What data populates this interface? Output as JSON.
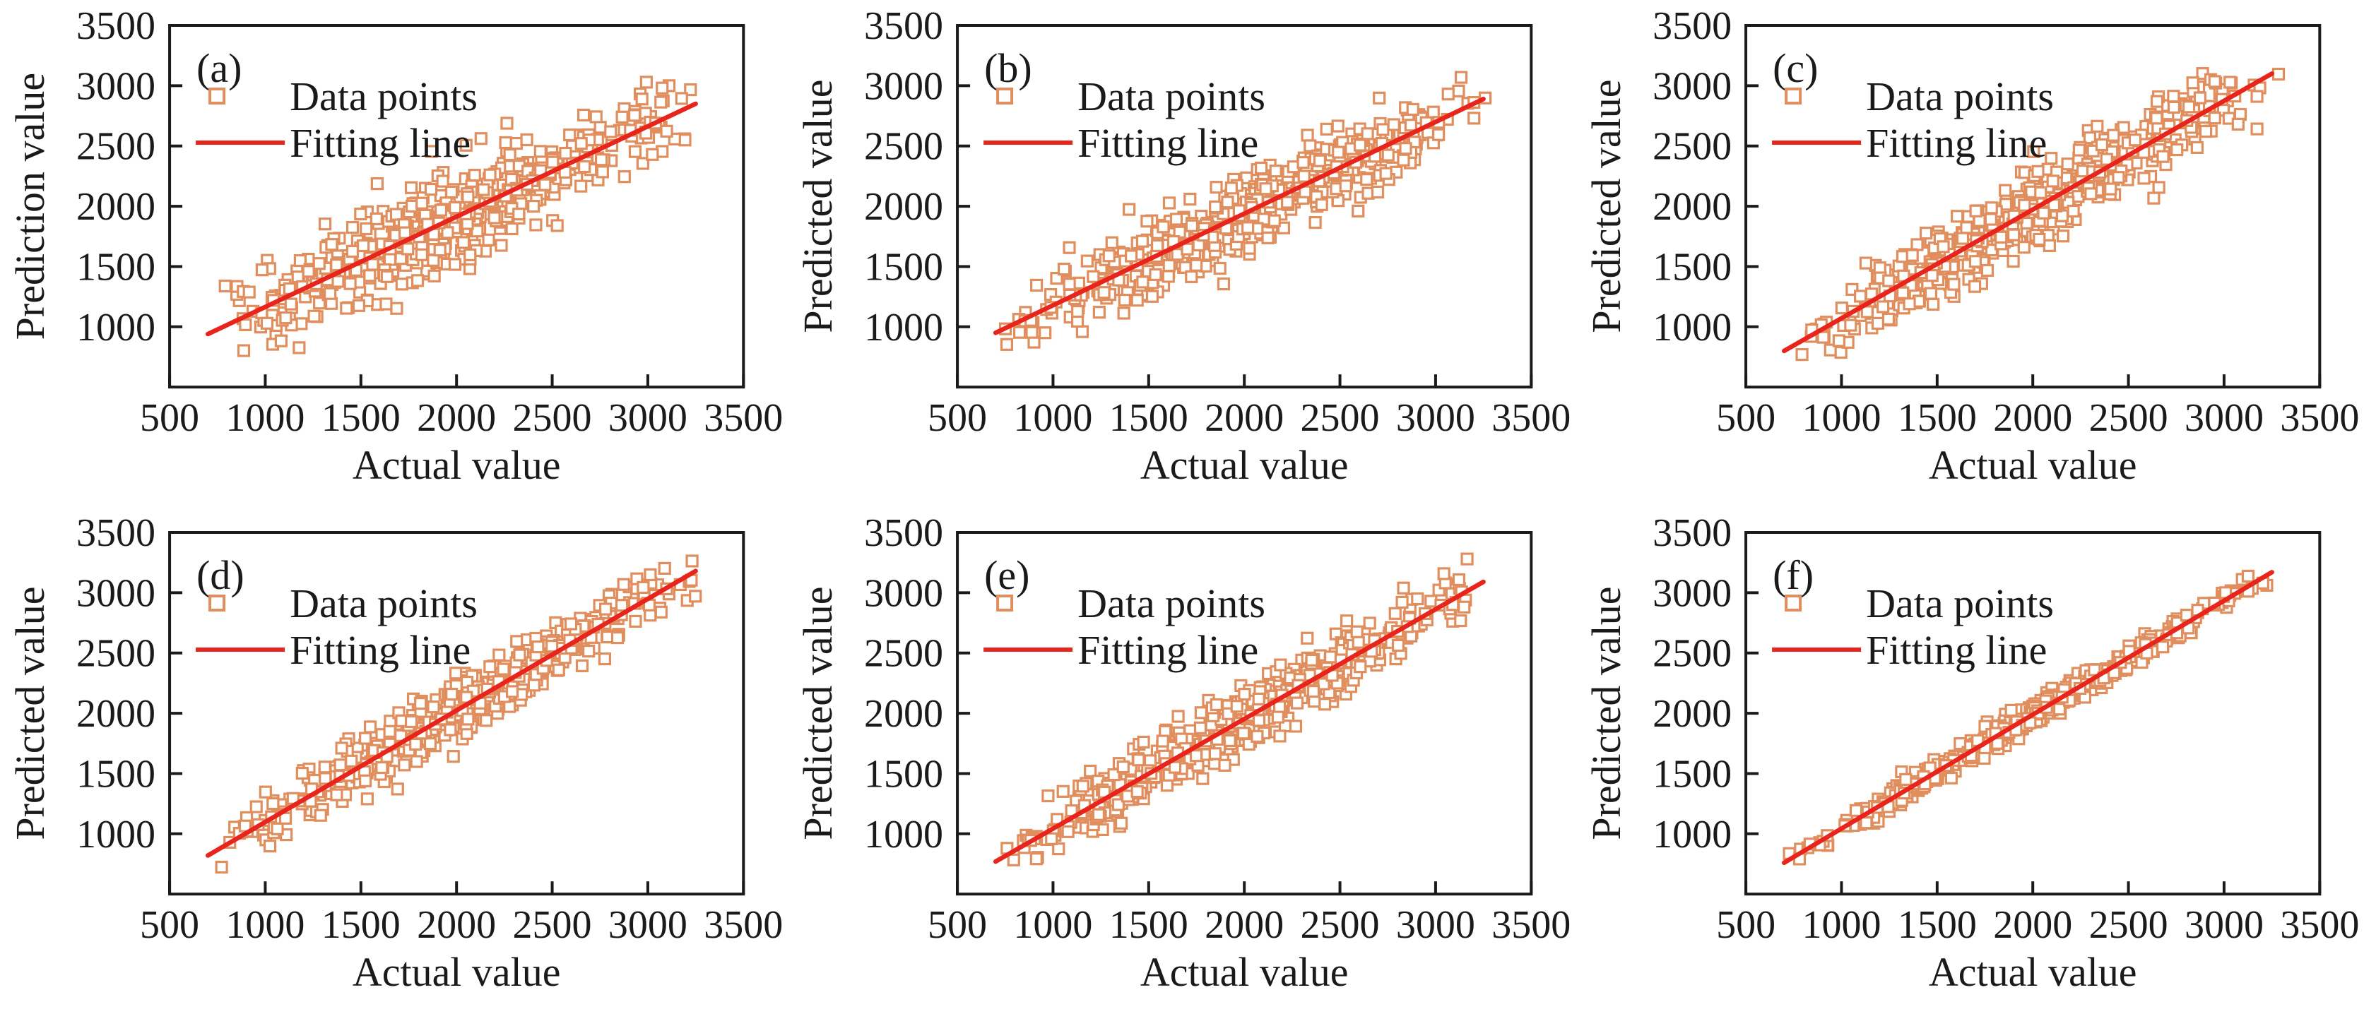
{
  "figure": {
    "background": "#ffffff",
    "axis_color": "#1a1a1a",
    "point_color": "#e08e5e",
    "point_fill": "#ffffff",
    "line_color": "#e8251d",
    "legend": {
      "data_points_label": "Data points",
      "fitting_line_label": "Fitting line"
    }
  },
  "chart_data": [
    {
      "type": "scatter",
      "label": "(a)",
      "xlabel": "Actual value",
      "ylabel": "Prediction value",
      "xlim": [
        500,
        3500
      ],
      "ylim": [
        500,
        3500
      ],
      "x_ticks": [
        500,
        1000,
        1500,
        2000,
        2500,
        3000,
        3500
      ],
      "y_ticks": [
        1000,
        1500,
        2000,
        2500,
        3000,
        3500
      ],
      "legend": [
        "Data points",
        "Fitting line"
      ],
      "fit_line": {
        "x1": 700,
        "y1": 940,
        "x2": 3250,
        "y2": 2850
      },
      "scatter": {
        "n": 560,
        "seed": 11,
        "noise_sd": 185,
        "x_min": 690,
        "x_max": 3300
      }
    },
    {
      "type": "scatter",
      "label": "(b)",
      "xlabel": "Actual value",
      "ylabel": "Predicted value",
      "xlim": [
        500,
        3500
      ],
      "ylim": [
        500,
        3500
      ],
      "x_ticks": [
        500,
        1000,
        1500,
        2000,
        2500,
        3000,
        3500
      ],
      "y_ticks": [
        1000,
        1500,
        2000,
        2500,
        3000,
        3500
      ],
      "legend": [
        "Data points",
        "Fitting line"
      ],
      "fit_line": {
        "x1": 700,
        "y1": 950,
        "x2": 3250,
        "y2": 2890
      },
      "scatter": {
        "n": 560,
        "seed": 22,
        "noise_sd": 150,
        "x_min": 690,
        "x_max": 3300
      }
    },
    {
      "type": "scatter",
      "label": "(c)",
      "xlabel": "Actual value",
      "ylabel": "Predicted value",
      "xlim": [
        500,
        3500
      ],
      "ylim": [
        500,
        3500
      ],
      "x_ticks": [
        500,
        1000,
        1500,
        2000,
        2500,
        3000,
        3500
      ],
      "y_ticks": [
        1000,
        1500,
        2000,
        2500,
        3000,
        3500
      ],
      "legend": [
        "Data points",
        "Fitting line"
      ],
      "fit_line": {
        "x1": 700,
        "y1": 800,
        "x2": 3250,
        "y2": 3100
      },
      "scatter": {
        "n": 580,
        "seed": 33,
        "noise_sd": 150,
        "x_min": 690,
        "x_max": 3300
      }
    },
    {
      "type": "scatter",
      "label": "(d)",
      "xlabel": "Actual value",
      "ylabel": "Predicted value",
      "xlim": [
        500,
        3500
      ],
      "ylim": [
        500,
        3500
      ],
      "x_ticks": [
        500,
        1000,
        1500,
        2000,
        2500,
        3000,
        3500
      ],
      "y_ticks": [
        1000,
        1500,
        2000,
        2500,
        3000,
        3500
      ],
      "legend": [
        "Data points",
        "Fitting line"
      ],
      "fit_line": {
        "x1": 700,
        "y1": 820,
        "x2": 3250,
        "y2": 3180
      },
      "scatter": {
        "n": 560,
        "seed": 44,
        "noise_sd": 115,
        "x_min": 690,
        "x_max": 3300
      }
    },
    {
      "type": "scatter",
      "label": "(e)",
      "xlabel": "Actual value",
      "ylabel": "Predicted value",
      "xlim": [
        500,
        3500
      ],
      "ylim": [
        500,
        3500
      ],
      "x_ticks": [
        500,
        1000,
        1500,
        2000,
        2500,
        3000,
        3500
      ],
      "y_ticks": [
        1000,
        1500,
        2000,
        2500,
        3000,
        3500
      ],
      "legend": [
        "Data points",
        "Fitting line"
      ],
      "fit_line": {
        "x1": 700,
        "y1": 770,
        "x2": 3250,
        "y2": 3090
      },
      "scatter": {
        "n": 560,
        "seed": 55,
        "noise_sd": 125,
        "x_min": 690,
        "x_max": 3300
      }
    },
    {
      "type": "scatter",
      "label": "(f)",
      "xlabel": "Actual value",
      "ylabel": "Predicted value",
      "xlim": [
        500,
        3500
      ],
      "ylim": [
        500,
        3500
      ],
      "x_ticks": [
        500,
        1000,
        1500,
        2000,
        2500,
        3000,
        3500
      ],
      "y_ticks": [
        1000,
        1500,
        2000,
        2500,
        3000,
        3500
      ],
      "legend": [
        "Data points",
        "Fitting line"
      ],
      "fit_line": {
        "x1": 700,
        "y1": 760,
        "x2": 3250,
        "y2": 3170
      },
      "scatter": {
        "n": 560,
        "seed": 66,
        "noise_sd": 48,
        "x_min": 690,
        "x_max": 3300
      }
    }
  ]
}
